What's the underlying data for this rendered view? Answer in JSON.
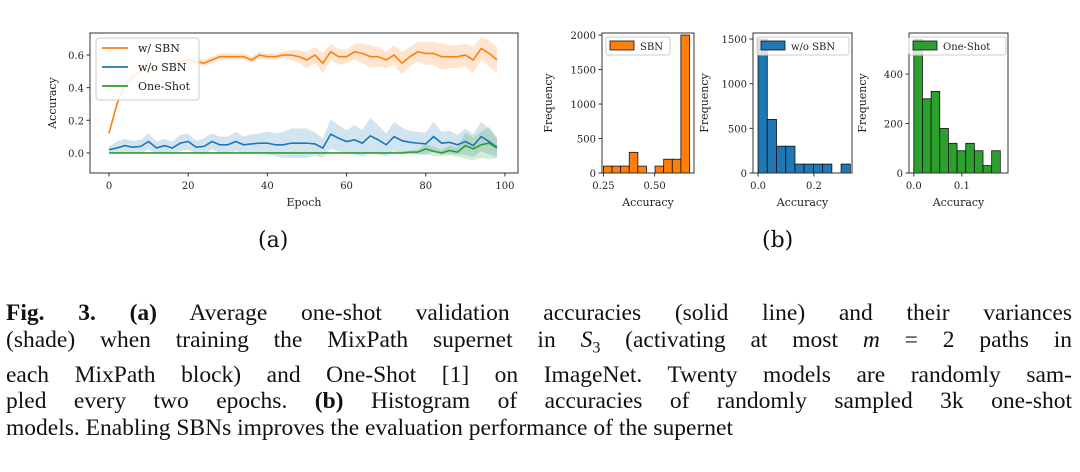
{
  "figure": {
    "label_a": "(a)",
    "label_b": "(b)"
  },
  "caption": {
    "fig_label": "Fig. 3.",
    "part_a": "(a)",
    "line1_rest": "Average one-shot validation accuracies (solid line) and their variances",
    "line2_pre": "(shade) when training the MixPath supernet in",
    "line2_sym": "S",
    "line2_sub": "3",
    "line2_mid": "(activating at most",
    "line2_m": "m",
    "line2_post": "= 2 paths in",
    "line3": "each MixPath block) and One-Shot [1] on ImageNet. Twenty models are randomly sam-",
    "line4_pre": "pled every two epochs.",
    "part_b": "(b)",
    "line4_post": "Histogram of accuracies of randomly sampled 3k one-shot",
    "line5": "models. Enabling SBNs improves the evaluation performance of the supernet"
  },
  "chart_data": [
    {
      "type": "line",
      "xlabel": "Epoch",
      "ylabel": "Accuracy",
      "xlim": [
        -4.8,
        103.3
      ],
      "ylim": [
        -0.123,
        0.735
      ],
      "xticks": [
        0,
        20,
        40,
        60,
        80,
        100
      ],
      "xtick_labels": [
        "0",
        "20",
        "40",
        "60",
        "80",
        "100"
      ],
      "yticks": [
        0.0,
        0.2,
        0.4,
        0.6
      ],
      "ytick_labels": [
        "0.0",
        "0.2",
        "0.4",
        "0.6"
      ],
      "grid": false,
      "legend": "top-left",
      "x": [
        0,
        2,
        4,
        6,
        8,
        10,
        12,
        14,
        16,
        18,
        20,
        22,
        24,
        26,
        28,
        30,
        32,
        34,
        36,
        38,
        40,
        42,
        44,
        46,
        48,
        50,
        52,
        54,
        56,
        58,
        60,
        62,
        64,
        66,
        68,
        70,
        72,
        74,
        76,
        78,
        80,
        82,
        84,
        86,
        88,
        90,
        92,
        94,
        96,
        98
      ],
      "series": [
        {
          "name": "w/ SBN",
          "color": "#ff7f0e",
          "values": [
            0.12,
            0.3,
            0.42,
            0.47,
            0.5,
            0.52,
            0.53,
            0.54,
            0.55,
            0.56,
            0.57,
            0.56,
            0.55,
            0.57,
            0.59,
            0.59,
            0.59,
            0.59,
            0.57,
            0.6,
            0.59,
            0.59,
            0.6,
            0.6,
            0.59,
            0.57,
            0.6,
            0.55,
            0.62,
            0.59,
            0.59,
            0.62,
            0.61,
            0.59,
            0.59,
            0.57,
            0.6,
            0.55,
            0.59,
            0.62,
            0.61,
            0.61,
            0.59,
            0.59,
            0.59,
            0.6,
            0.57,
            0.64,
            0.61,
            0.57
          ],
          "spread": [
            0.01,
            0.02,
            0.02,
            0.02,
            0.02,
            0.02,
            0.02,
            0.02,
            0.02,
            0.02,
            0.02,
            0.02,
            0.02,
            0.02,
            0.02,
            0.02,
            0.02,
            0.02,
            0.02,
            0.02,
            0.02,
            0.02,
            0.02,
            0.03,
            0.04,
            0.05,
            0.05,
            0.06,
            0.05,
            0.05,
            0.04,
            0.05,
            0.06,
            0.07,
            0.06,
            0.05,
            0.06,
            0.07,
            0.06,
            0.06,
            0.07,
            0.07,
            0.08,
            0.07,
            0.07,
            0.07,
            0.08,
            0.07,
            0.08,
            0.08
          ]
        },
        {
          "name": "w/o SBN",
          "color": "#1f77b4",
          "values": [
            0.02,
            0.03,
            0.045,
            0.035,
            0.04,
            0.07,
            0.03,
            0.045,
            0.03,
            0.06,
            0.07,
            0.035,
            0.04,
            0.07,
            0.05,
            0.05,
            0.07,
            0.05,
            0.055,
            0.06,
            0.06,
            0.05,
            0.05,
            0.06,
            0.06,
            0.06,
            0.055,
            0.03,
            0.115,
            0.09,
            0.07,
            0.08,
            0.06,
            0.105,
            0.08,
            0.05,
            0.1,
            0.075,
            0.065,
            0.06,
            0.055,
            0.1,
            0.06,
            0.065,
            0.05,
            0.07,
            0.045,
            0.1,
            0.07,
            0.035
          ],
          "spread": [
            0.02,
            0.04,
            0.04,
            0.04,
            0.04,
            0.05,
            0.04,
            0.04,
            0.04,
            0.05,
            0.05,
            0.04,
            0.05,
            0.05,
            0.05,
            0.05,
            0.06,
            0.05,
            0.06,
            0.06,
            0.07,
            0.07,
            0.08,
            0.09,
            0.09,
            0.09,
            0.07,
            0.06,
            0.09,
            0.08,
            0.07,
            0.09,
            0.08,
            0.11,
            0.09,
            0.07,
            0.09,
            0.08,
            0.07,
            0.07,
            0.07,
            0.09,
            0.07,
            0.07,
            0.06,
            0.08,
            0.07,
            0.09,
            0.08,
            0.06
          ]
        },
        {
          "name": "One-Shot",
          "color": "#2ca02c",
          "values": [
            0,
            0,
            0,
            0,
            0,
            0,
            0,
            0,
            0,
            0,
            0,
            0,
            0,
            0,
            0,
            0,
            0,
            0,
            0,
            0,
            0,
            0,
            0,
            0,
            0,
            0,
            0,
            0,
            0,
            0,
            0,
            0,
            0,
            0,
            0,
            0,
            0,
            0,
            0.005,
            0.005,
            0.025,
            0.01,
            0.0,
            0.015,
            0.005,
            0.045,
            0.025,
            0.05,
            0.06,
            0.03
          ],
          "spread": [
            0,
            0,
            0,
            0,
            0,
            0,
            0,
            0,
            0,
            0,
            0,
            0,
            0,
            0,
            0,
            0,
            0,
            0,
            0,
            0,
            0,
            0,
            0,
            0,
            0,
            0,
            0,
            0,
            0,
            0,
            0,
            0,
            0,
            0,
            0,
            0,
            0.005,
            0.01,
            0.01,
            0.015,
            0.03,
            0.03,
            0.02,
            0.03,
            0.03,
            0.08,
            0.07,
            0.08,
            0.1,
            0.06
          ]
        }
      ]
    },
    {
      "type": "bar",
      "xlabel": "Accuracy",
      "ylabel": "Frequency",
      "legend": "top-left",
      "legend_label": "SBN",
      "color": "#ff7f0e",
      "bin_edges": [
        0.25,
        0.292,
        0.334,
        0.376,
        0.418,
        0.46,
        0.502,
        0.544,
        0.586,
        0.628,
        0.67
      ],
      "values": [
        100,
        100,
        100,
        300,
        100,
        0,
        100,
        200,
        200,
        2000
      ],
      "xlim": [
        0.243,
        0.692
      ],
      "ylim": [
        0,
        2030
      ],
      "xticks": [
        0.25,
        0.5
      ],
      "xtick_labels": [
        "0.25",
        "0.50"
      ],
      "yticks": [
        0,
        500,
        1000,
        1500,
        2000
      ],
      "ytick_labels": [
        "0",
        "500",
        "1000",
        "1500",
        "2000"
      ]
    },
    {
      "type": "bar",
      "xlabel": "Accuracy",
      "ylabel": "Frequency",
      "legend": "top-right",
      "legend_label": "w/o SBN",
      "color": "#1f77b4",
      "bin_edges": [
        0,
        0.033,
        0.066,
        0.099,
        0.132,
        0.165,
        0.198,
        0.231,
        0.264,
        0.297,
        0.33
      ],
      "values": [
        1500,
        600,
        300,
        300,
        100,
        100,
        100,
        100,
        0,
        100
      ],
      "xlim": [
        -0.018,
        0.336
      ],
      "ylim": [
        0,
        1567
      ],
      "xticks": [
        0.0,
        0.2
      ],
      "xtick_labels": [
        "0.0",
        "0.2"
      ],
      "yticks": [
        0,
        500,
        1000,
        1500
      ],
      "ytick_labels": [
        "0",
        "500",
        "1000",
        "1500"
      ]
    },
    {
      "type": "bar",
      "xlabel": "Accuracy",
      "ylabel": "Frequency",
      "legend": "top-right",
      "legend_label": "One-Shot",
      "color": "#2ca02c",
      "bin_edges": [
        0,
        0.018,
        0.036,
        0.054,
        0.072,
        0.09,
        0.108,
        0.126,
        0.144,
        0.162,
        0.18
      ],
      "values": [
        540,
        300,
        330,
        180,
        120,
        90,
        120,
        90,
        30,
        90
      ],
      "xlim": [
        -0.01,
        0.196
      ],
      "ylim": [
        0,
        566
      ],
      "xticks": [
        0.0,
        0.1
      ],
      "xtick_labels": [
        "0.0",
        "0.1"
      ],
      "yticks": [
        0,
        200,
        400
      ],
      "ytick_labels": [
        "0",
        "200",
        "400"
      ]
    }
  ]
}
